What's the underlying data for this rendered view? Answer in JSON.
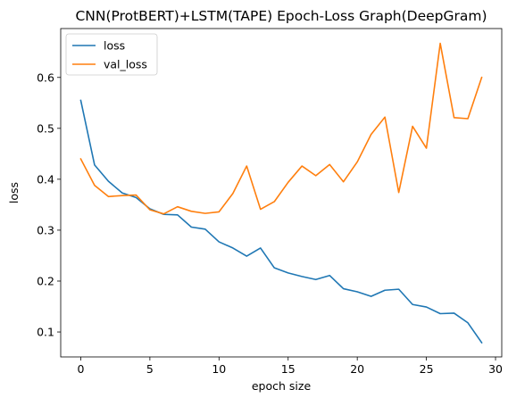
{
  "chart_data": {
    "type": "line",
    "title": "CNN(ProtBERT)+LSTM(TAPE) Epoch-Loss Graph(DeepGram)",
    "xlabel": "epoch size",
    "ylabel": "loss",
    "xlim": [
      -1.45,
      30.45
    ],
    "ylim": [
      0.051,
      0.696
    ],
    "xticks": [
      0,
      5,
      10,
      15,
      20,
      25,
      30
    ],
    "yticks": [
      0.1,
      0.2,
      0.3,
      0.4,
      0.5,
      0.6
    ],
    "grid": false,
    "legend_position": "top-left",
    "x": [
      0,
      1,
      2,
      3,
      4,
      5,
      6,
      7,
      8,
      9,
      10,
      11,
      12,
      13,
      14,
      15,
      16,
      17,
      18,
      19,
      20,
      21,
      22,
      23,
      24,
      25,
      26,
      27,
      28,
      29
    ],
    "series": [
      {
        "name": "loss",
        "color": "#1f77b4",
        "values": [
          0.555,
          0.428,
          0.396,
          0.373,
          0.364,
          0.342,
          0.331,
          0.33,
          0.306,
          0.302,
          0.277,
          0.265,
          0.249,
          0.265,
          0.226,
          0.216,
          0.209,
          0.203,
          0.211,
          0.185,
          0.179,
          0.17,
          0.182,
          0.184,
          0.154,
          0.149,
          0.136,
          0.137,
          0.118,
          0.079
        ]
      },
      {
        "name": "val_loss",
        "color": "#ff7f0e",
        "values": [
          0.44,
          0.388,
          0.366,
          0.368,
          0.369,
          0.34,
          0.332,
          0.346,
          0.337,
          0.333,
          0.336,
          0.372,
          0.426,
          0.341,
          0.356,
          0.394,
          0.426,
          0.407,
          0.429,
          0.395,
          0.434,
          0.488,
          0.522,
          0.374,
          0.504,
          0.461,
          0.667,
          0.521,
          0.519,
          0.6
        ]
      }
    ]
  }
}
